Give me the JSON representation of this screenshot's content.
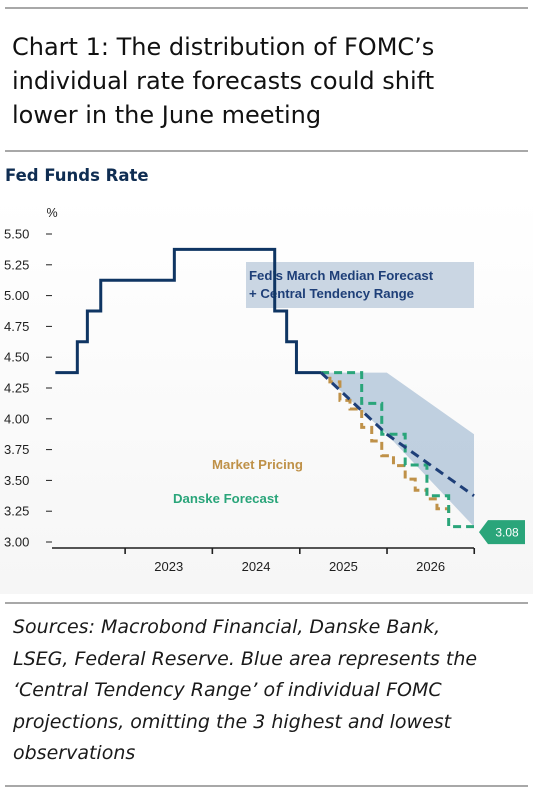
{
  "title": [
    "Chart 1: The distribution of FOMC’s",
    "individual rate forecasts could shift",
    "lower in the June meeting"
  ],
  "source_note": [
    "Sources: Macrobond Financial, Danske Bank,",
    "LSEG, Federal Reserve. Blue area represents the",
    "‘Central Tendency Range’ of individual FOMC",
    "projections, omitting the 3 highest and lowest",
    "observations"
  ],
  "colors": {
    "fed_funds": "#0f3563",
    "fed_median": "#1e3f78",
    "central_tendency": "#b5c8db",
    "market_pricing": "#bf9148",
    "danske": "#2aa57a",
    "legend_box": "#cad6e3"
  },
  "chart_data": {
    "type": "line",
    "title": "Fed Funds Rate",
    "ylabel": "%",
    "ylim": [
      3.0,
      5.5
    ],
    "yticks": [
      "5.50",
      "5.25",
      "5.00",
      "4.75",
      "4.50",
      "4.25",
      "4.00",
      "3.75",
      "3.50",
      "3.25",
      "3.00"
    ],
    "xlim": [
      "2022-03-01",
      "2026-12-31"
    ],
    "xticks": [
      "2023",
      "2024",
      "2025",
      "2026"
    ],
    "grid": false,
    "series": [
      {
        "key": "fed_funds",
        "type": "step",
        "x": [
          "2022-03-15",
          "2022-05-04",
          "2022-06-15",
          "2022-07-27",
          "2022-09-21",
          "2023-07-26",
          "2024-09-18",
          "2024-11-07",
          "2024-12-18",
          "2025-03-31"
        ],
        "y": [
          4.375,
          4.375,
          4.625,
          4.875,
          5.125,
          5.375,
          4.875,
          4.625,
          4.375,
          4.375
        ]
      },
      {
        "key": "fed_median",
        "style": "dashed",
        "x": [
          "2025-03-31",
          "2025-12-31",
          "2026-12-31"
        ],
        "y": [
          4.375,
          3.875,
          3.375
        ]
      },
      {
        "key": "market_pricing",
        "name": "Market Pricing",
        "type": "step",
        "style": "dashed",
        "x": [
          "2025-03-31",
          "2025-05-07",
          "2025-06-18",
          "2025-07-30",
          "2025-09-17",
          "2025-10-29",
          "2025-12-10",
          "2026-01-28",
          "2026-03-18",
          "2026-04-29",
          "2026-06-17",
          "2026-07-29",
          "2026-09-16"
        ],
        "y": [
          4.375,
          4.3,
          4.15,
          4.08,
          3.93,
          3.82,
          3.7,
          3.62,
          3.51,
          3.42,
          3.35,
          3.27,
          3.22
        ]
      },
      {
        "key": "danske",
        "name": "Danske Forecast",
        "type": "step",
        "style": "dashed",
        "x": [
          "2025-03-31",
          "2025-05-07",
          "2025-06-18",
          "2025-09-17",
          "2025-12-10",
          "2026-03-18",
          "2026-06-17",
          "2026-09-16",
          "2026-12-31"
        ],
        "y": [
          4.375,
          4.375,
          4.375,
          4.125,
          3.875,
          3.625,
          3.375,
          3.125,
          3.125
        ]
      }
    ],
    "band": {
      "key": "central_tendency",
      "x": [
        "2025-03-31",
        "2025-12-31",
        "2026-12-31"
      ],
      "upper": [
        4.375,
        4.375,
        3.875
      ],
      "lower": [
        4.375,
        3.875,
        3.125
      ]
    },
    "annotations": {
      "fed_forecast": [
        "Fed's March Median Forecast",
        "+ Central Tendency Range"
      ],
      "market_pricing": "Market Pricing",
      "danske": "Danske Forecast",
      "end_value": "3.08"
    }
  }
}
